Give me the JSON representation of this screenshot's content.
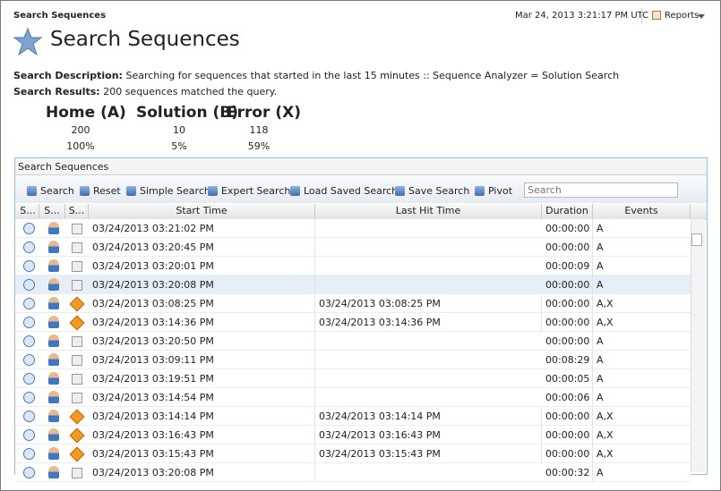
{
  "header": {
    "breadcrumb": "Search Sequences",
    "timestamp": "Mar 24, 2013 3:21:17 PM UTC",
    "reports": "Reports"
  },
  "title": "Search Sequences",
  "description": {
    "label": "Search Description:",
    "text": "Searching for sequences that started in the last 15 minutes :: Sequence Analyzer = Solution Search"
  },
  "results": {
    "label": "Search Results:",
    "text": "200 sequences matched the query."
  },
  "summary": [
    {
      "heading": "Home (A)",
      "count": "200",
      "percent": "100%"
    },
    {
      "heading": "Solution (B)",
      "count": "10",
      "percent": "5%"
    },
    {
      "heading": "Error (X)",
      "count": "118",
      "percent": "59%"
    }
  ],
  "panel": {
    "title": "Search Sequences",
    "toolbar": [
      "Search",
      "Reset",
      "Simple Search",
      "Expert Search",
      "Load Saved Search",
      "Save Search",
      "Pivot"
    ],
    "search_placeholder": "Search",
    "columns": [
      "S...",
      "S...",
      "S...",
      "Start Time",
      "Last Hit Time",
      "Duration",
      "Events"
    ],
    "rows": [
      {
        "start": "03/24/2013 03:21:02 PM",
        "duration": "00:00:00",
        "events": "A"
      },
      {
        "start": "03/24/2013 03:20:45 PM",
        "duration": "00:00:00",
        "events": "A"
      },
      {
        "start": "03/24/2013 03:20:01 PM",
        "duration": "00:00:09",
        "events": "A"
      },
      {
        "start": "03/24/2013 03:20:08 PM",
        "duration": "00:00:00",
        "events": "A"
      },
      {
        "start": "03/24/2013 03:08:25 PM",
        "last_hit": "03/24/2013 03:08:25 PM",
        "duration": "00:00:00",
        "events": "A,X"
      },
      {
        "start": "03/24/2013 03:14:36 PM",
        "last_hit": "03/24/2013 03:14:36 PM",
        "duration": "00:00:00",
        "events": "A,X"
      },
      {
        "start": "03/24/2013 03:20:50 PM",
        "duration": "00:00:00",
        "events": "A"
      },
      {
        "start": "03/24/2013 03:09:11 PM",
        "duration": "00:08:29",
        "events": "A"
      },
      {
        "start": "03/24/2013 03:19:51 PM",
        "duration": "00:00:05",
        "events": "A"
      },
      {
        "start": "03/24/2013 03:14:54 PM",
        "duration": "00:00:06",
        "events": "A"
      },
      {
        "start": "03/24/2013 03:14:14 PM",
        "last_hit": "03/24/2013 03:14:14 PM",
        "duration": "00:00:00",
        "events": "A,X"
      },
      {
        "start": "03/24/2013 03:16:43 PM",
        "last_hit": "03/24/2013 03:16:43 PM",
        "duration": "00:00:00",
        "events": "A,X"
      },
      {
        "start": "03/24/2013 03:15:43 PM",
        "last_hit": "03/24/2013 03:15:43 PM",
        "duration": "00:00:00",
        "events": "A,X"
      },
      {
        "start": "03/24/2013 03:20:08 PM",
        "duration": "00:00:32",
        "events": "A"
      }
    ]
  }
}
